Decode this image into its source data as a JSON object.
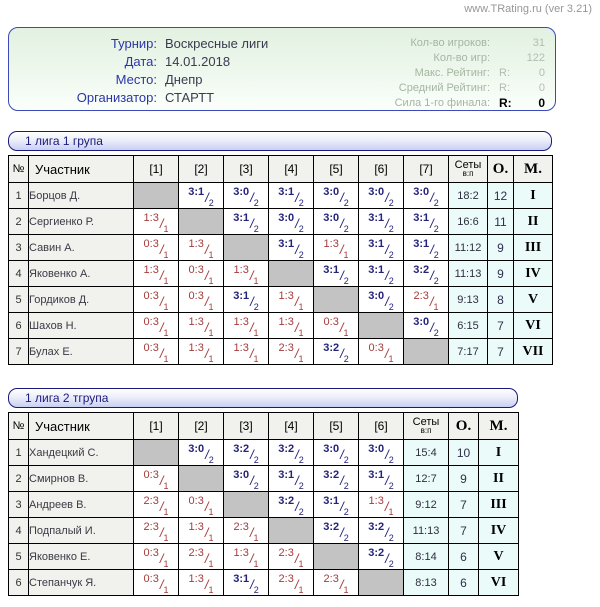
{
  "header": {
    "site": "www.TRating.ru (ver 3.21)"
  },
  "info": {
    "fields": [
      {
        "label": "Турнир:",
        "value": "Воскресные лиги"
      },
      {
        "label": "Дата:",
        "value": "14.01.2018"
      },
      {
        "label": "Место:",
        "value": "Днепр"
      },
      {
        "label": "Организатор:",
        "value": "СТАРТТ"
      }
    ],
    "stats": [
      {
        "label": "Кол-во игроков:",
        "prefix": "",
        "value": "31",
        "strong": false
      },
      {
        "label": "Кол-во игр:",
        "prefix": "",
        "value": "122",
        "strong": false
      },
      {
        "label": "Макс. Рейтинг:",
        "prefix": "R:",
        "value": "0",
        "strong": false
      },
      {
        "label": "Средний Рейтинг:",
        "prefix": "R:",
        "value": "0",
        "strong": false
      },
      {
        "label": "Сила 1-го финала:",
        "prefix": "R:",
        "value": "0",
        "strong": true
      }
    ]
  },
  "colors": {
    "win_score": "#23237a",
    "loss_score": "#a43b3b",
    "diagonal_cell": "#c3c3c3",
    "cyan_cell": "#ebfbfa",
    "gray_cell": "#f1f1ee",
    "bar_border": "#1a1a7e",
    "info_border": "#3b4ab8"
  },
  "tables": [
    {
      "title": "1 лига 1 група",
      "columns": {
        "num": "№",
        "name": "Участник",
        "matches": [
          "[1]",
          "[2]",
          "[3]",
          "[4]",
          "[5]",
          "[6]",
          "[7]"
        ],
        "sets": "Сеты",
        "sets_sub": "в:п",
        "points": "О.",
        "place": "М."
      },
      "rows": [
        {
          "num": "1",
          "name": "Борцов Д.",
          "cells": [
            null,
            {
              "s": "3:1",
              "n": "2"
            },
            {
              "s": "3:0",
              "n": "2"
            },
            {
              "s": "3:1",
              "n": "2"
            },
            {
              "s": "3:0",
              "n": "2"
            },
            {
              "s": "3:0",
              "n": "2"
            },
            {
              "s": "3:0",
              "n": "2"
            }
          ],
          "sets": "18:2",
          "points": "12",
          "place": "I"
        },
        {
          "num": "2",
          "name": "Сергиенко Р.",
          "cells": [
            {
              "s": "1:3",
              "n": "1"
            },
            null,
            {
              "s": "3:1",
              "n": "2"
            },
            {
              "s": "3:0",
              "n": "2"
            },
            {
              "s": "3:0",
              "n": "2"
            },
            {
              "s": "3:1",
              "n": "2"
            },
            {
              "s": "3:1",
              "n": "2"
            }
          ],
          "sets": "16:6",
          "points": "11",
          "place": "II"
        },
        {
          "num": "3",
          "name": "Савин А.",
          "cells": [
            {
              "s": "0:3",
              "n": "1"
            },
            {
              "s": "1:3",
              "n": "1"
            },
            null,
            {
              "s": "3:1",
              "n": "2"
            },
            {
              "s": "1:3",
              "n": "1"
            },
            {
              "s": "3:1",
              "n": "2"
            },
            {
              "s": "3:1",
              "n": "2"
            }
          ],
          "sets": "11:12",
          "points": "9",
          "place": "III"
        },
        {
          "num": "4",
          "name": "Яковенко А.",
          "cells": [
            {
              "s": "1:3",
              "n": "1"
            },
            {
              "s": "0:3",
              "n": "1"
            },
            {
              "s": "1:3",
              "n": "1"
            },
            null,
            {
              "s": "3:1",
              "n": "2"
            },
            {
              "s": "3:1",
              "n": "2"
            },
            {
              "s": "3:2",
              "n": "2"
            }
          ],
          "sets": "11:13",
          "points": "9",
          "place": "IV"
        },
        {
          "num": "5",
          "name": "Гордиков Д.",
          "cells": [
            {
              "s": "0:3",
              "n": "1"
            },
            {
              "s": "0:3",
              "n": "1"
            },
            {
              "s": "3:1",
              "n": "2"
            },
            {
              "s": "1:3",
              "n": "1"
            },
            null,
            {
              "s": "3:0",
              "n": "2"
            },
            {
              "s": "2:3",
              "n": "1"
            }
          ],
          "sets": "9:13",
          "points": "8",
          "place": "V"
        },
        {
          "num": "6",
          "name": "Шахов Н.",
          "cells": [
            {
              "s": "0:3",
              "n": "1"
            },
            {
              "s": "1:3",
              "n": "1"
            },
            {
              "s": "1:3",
              "n": "1"
            },
            {
              "s": "1:3",
              "n": "1"
            },
            {
              "s": "0:3",
              "n": "1"
            },
            null,
            {
              "s": "3:0",
              "n": "2"
            }
          ],
          "sets": "6:15",
          "points": "7",
          "place": "VI"
        },
        {
          "num": "7",
          "name": "Булах Е.",
          "cells": [
            {
              "s": "0:3",
              "n": "1"
            },
            {
              "s": "1:3",
              "n": "1"
            },
            {
              "s": "1:3",
              "n": "1"
            },
            {
              "s": "2:3",
              "n": "1"
            },
            {
              "s": "3:2",
              "n": "2"
            },
            {
              "s": "0:3",
              "n": "1"
            },
            null
          ],
          "sets": "7:17",
          "points": "7",
          "place": "VII"
        }
      ]
    },
    {
      "title": "1 лига 2 тгрупа",
      "columns": {
        "num": "№",
        "name": "Участник",
        "matches": [
          "[1]",
          "[2]",
          "[3]",
          "[4]",
          "[5]",
          "[6]"
        ],
        "sets": "Сеты",
        "sets_sub": "в:п",
        "points": "О.",
        "place": "М."
      },
      "rows": [
        {
          "num": "1",
          "name": "Хандецкий С.",
          "cells": [
            null,
            {
              "s": "3:0",
              "n": "2"
            },
            {
              "s": "3:2",
              "n": "2"
            },
            {
              "s": "3:2",
              "n": "2"
            },
            {
              "s": "3:0",
              "n": "2"
            },
            {
              "s": "3:0",
              "n": "2"
            }
          ],
          "sets": "15:4",
          "points": "10",
          "place": "I"
        },
        {
          "num": "2",
          "name": "Смирнов В.",
          "cells": [
            {
              "s": "0:3",
              "n": "1"
            },
            null,
            {
              "s": "3:0",
              "n": "2"
            },
            {
              "s": "3:1",
              "n": "2"
            },
            {
              "s": "3:2",
              "n": "2"
            },
            {
              "s": "3:1",
              "n": "2"
            }
          ],
          "sets": "12:7",
          "points": "9",
          "place": "II"
        },
        {
          "num": "3",
          "name": "Андреев В.",
          "cells": [
            {
              "s": "2:3",
              "n": "1"
            },
            {
              "s": "0:3",
              "n": "1"
            },
            null,
            {
              "s": "3:2",
              "n": "2"
            },
            {
              "s": "3:1",
              "n": "2"
            },
            {
              "s": "1:3",
              "n": "1"
            }
          ],
          "sets": "9:12",
          "points": "7",
          "place": "III"
        },
        {
          "num": "4",
          "name": "Подпалый И.",
          "cells": [
            {
              "s": "2:3",
              "n": "1"
            },
            {
              "s": "1:3",
              "n": "1"
            },
            {
              "s": "2:3",
              "n": "1"
            },
            null,
            {
              "s": "3:2",
              "n": "2"
            },
            {
              "s": "3:2",
              "n": "2"
            }
          ],
          "sets": "11:13",
          "points": "7",
          "place": "IV"
        },
        {
          "num": "5",
          "name": "Яковенко Е.",
          "cells": [
            {
              "s": "0:3",
              "n": "1"
            },
            {
              "s": "2:3",
              "n": "1"
            },
            {
              "s": "1:3",
              "n": "1"
            },
            {
              "s": "2:3",
              "n": "1"
            },
            null,
            {
              "s": "3:2",
              "n": "2"
            }
          ],
          "sets": "8:14",
          "points": "6",
          "place": "V"
        },
        {
          "num": "6",
          "name": "Степанчук Я.",
          "cells": [
            {
              "s": "0:3",
              "n": "1"
            },
            {
              "s": "1:3",
              "n": "1"
            },
            {
              "s": "3:1",
              "n": "2"
            },
            {
              "s": "2:3",
              "n": "1"
            },
            {
              "s": "2:3",
              "n": "1"
            },
            null
          ],
          "sets": "8:13",
          "points": "6",
          "place": "VI"
        }
      ]
    }
  ]
}
